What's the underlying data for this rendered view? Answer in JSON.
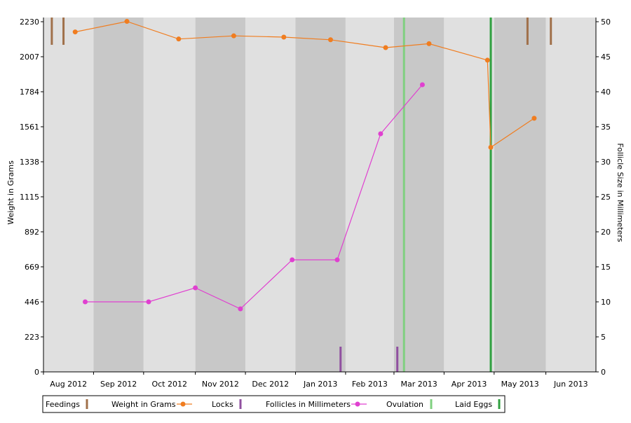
{
  "chart_data": {
    "type": "line",
    "x_axis": {
      "type": "date",
      "tick_labels": [
        "Aug 2012",
        "Sep 2012",
        "Oct 2012",
        "Nov 2012",
        "Dec 2012",
        "Jan 2013",
        "Feb 2013",
        "Mar 2013",
        "Apr 2013",
        "May 2013",
        "Jun 2013"
      ],
      "range": [
        "2012-07-24",
        "2013-06-20"
      ]
    },
    "y_left": {
      "label": "Weight in Grams",
      "ticks": [
        0,
        223,
        446,
        669,
        892,
        1115,
        1338,
        1561,
        1784,
        2007,
        2230
      ],
      "range": [
        0,
        2230
      ]
    },
    "y_right": {
      "label": "Follicle Size in Millimeters",
      "ticks": [
        0,
        5,
        10,
        15,
        20,
        25,
        30,
        35,
        40,
        45,
        50
      ],
      "range": [
        0,
        50
      ]
    },
    "month_bands": [
      {
        "start": "2012-07-24",
        "end": "2012-08-23",
        "shade": "light"
      },
      {
        "start": "2012-08-23",
        "end": "2012-09-22",
        "shade": "dark"
      },
      {
        "start": "2012-09-22",
        "end": "2012-10-23",
        "shade": "light"
      },
      {
        "start": "2012-10-23",
        "end": "2012-11-22",
        "shade": "dark"
      },
      {
        "start": "2012-11-22",
        "end": "2012-12-22",
        "shade": "light"
      },
      {
        "start": "2012-12-22",
        "end": "2013-01-21",
        "shade": "dark"
      },
      {
        "start": "2013-01-21",
        "end": "2013-02-19",
        "shade": "light"
      },
      {
        "start": "2013-02-19",
        "end": "2013-03-21",
        "shade": "dark"
      },
      {
        "start": "2013-03-21",
        "end": "2013-04-20",
        "shade": "light"
      },
      {
        "start": "2013-04-20",
        "end": "2013-05-21",
        "shade": "dark"
      },
      {
        "start": "2013-05-21",
        "end": "2013-06-20",
        "shade": "light"
      }
    ],
    "series": [
      {
        "name": "Weight in Grams",
        "axis": "left",
        "color": "#f07d20",
        "points": [
          {
            "x": "2012-08-12",
            "y": 2165
          },
          {
            "x": "2012-09-12",
            "y": 2232
          },
          {
            "x": "2012-10-13",
            "y": 2120
          },
          {
            "x": "2012-11-15",
            "y": 2140
          },
          {
            "x": "2012-12-15",
            "y": 2132
          },
          {
            "x": "2013-01-12",
            "y": 2115
          },
          {
            "x": "2013-02-14",
            "y": 2065
          },
          {
            "x": "2013-03-12",
            "y": 2090
          },
          {
            "x": "2013-04-16",
            "y": 1985
          },
          {
            "x": "2013-04-18",
            "y": 1430
          },
          {
            "x": "2013-05-14",
            "y": 1615
          }
        ]
      },
      {
        "name": "Follicles in Millimeters",
        "axis": "right",
        "color": "#e040d0",
        "points": [
          {
            "x": "2012-08-18",
            "y": 10
          },
          {
            "x": "2012-09-25",
            "y": 10
          },
          {
            "x": "2012-10-23",
            "y": 12
          },
          {
            "x": "2012-11-19",
            "y": 9
          },
          {
            "x": "2012-12-20",
            "y": 16
          },
          {
            "x": "2013-01-16",
            "y": 16
          },
          {
            "x": "2013-02-11",
            "y": 34
          },
          {
            "x": "2013-03-08",
            "y": 41
          }
        ]
      }
    ],
    "events": [
      {
        "name": "Feedings",
        "color": "#a0704a",
        "placement": "top",
        "dates": [
          "2012-07-29",
          "2012-08-05",
          "2013-05-10",
          "2013-05-24"
        ]
      },
      {
        "name": "Locks",
        "color": "#9050a0",
        "placement": "bottom",
        "dates": [
          "2013-01-18",
          "2013-02-21"
        ]
      },
      {
        "name": "Ovulation",
        "color": "#80d080",
        "placement": "full",
        "dates": [
          "2013-02-25"
        ]
      },
      {
        "name": "Laid Eggs",
        "color": "#30a040",
        "placement": "full",
        "dates": [
          "2013-04-18"
        ]
      }
    ],
    "legend": {
      "placement": "bottom",
      "items": [
        {
          "label": "Feedings",
          "marker": "tick",
          "color": "#a0704a"
        },
        {
          "label": "Weight in Grams",
          "marker": "line-dot",
          "color": "#f07d20"
        },
        {
          "label": "Locks",
          "marker": "tick",
          "color": "#9050a0"
        },
        {
          "label": "Follicles in Millimeters",
          "marker": "line-dot",
          "color": "#e040d0"
        },
        {
          "label": "Ovulation",
          "marker": "tick",
          "color": "#80d080"
        },
        {
          "label": "Laid Eggs",
          "marker": "tick",
          "color": "#30a040"
        }
      ]
    },
    "colors": {
      "band_light": "#e0e0e0",
      "band_dark": "#c8c8c8"
    }
  }
}
